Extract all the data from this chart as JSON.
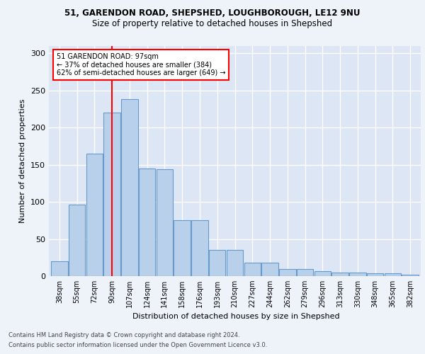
{
  "title1": "51, GARENDON ROAD, SHEPSHED, LOUGHBOROUGH, LE12 9NU",
  "title2": "Size of property relative to detached houses in Shepshed",
  "xlabel": "Distribution of detached houses by size in Shepshed",
  "ylabel": "Number of detached properties",
  "categories": [
    "38sqm",
    "55sqm",
    "72sqm",
    "90sqm",
    "107sqm",
    "124sqm",
    "141sqm",
    "158sqm",
    "176sqm",
    "193sqm",
    "210sqm",
    "227sqm",
    "244sqm",
    "262sqm",
    "279sqm",
    "296sqm",
    "313sqm",
    "330sqm",
    "348sqm",
    "365sqm",
    "382sqm"
  ],
  "bar_heights": [
    20,
    96,
    165,
    220,
    238,
    145,
    144,
    75,
    75,
    35,
    35,
    18,
    18,
    10,
    10,
    7,
    5,
    5,
    4,
    4,
    2
  ],
  "bar_color": "#b8d0ea",
  "bar_edgecolor": "#6699cc",
  "property_line_x": 3,
  "property_line_label": "51 GARENDON ROAD: 97sqm",
  "annotation_line1": "← 37% of detached houses are smaller (384)",
  "annotation_line2": "62% of semi-detached houses are larger (649) →",
  "vline_color": "red",
  "footer1": "Contains HM Land Registry data © Crown copyright and database right 2024.",
  "footer2": "Contains public sector information licensed under the Open Government Licence v3.0.",
  "ylim": [
    0,
    310
  ],
  "background_color": "#eef2f9",
  "plot_bg_color": "#dde6f4",
  "grid_color": "white",
  "title1_fontsize": 8.5,
  "title2_fontsize": 8.5
}
